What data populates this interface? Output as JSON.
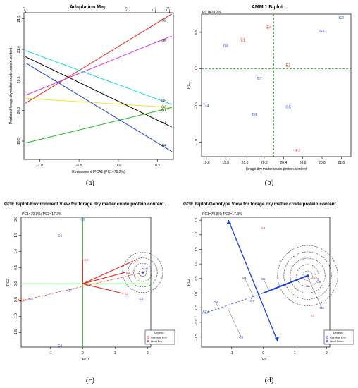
{
  "captions": [
    "(a)",
    "(b)",
    "(c)",
    "(d)"
  ],
  "colors": {
    "red": "#e8231c",
    "blue": "#1a3fd9",
    "green": "#19b419",
    "axis": "#000000"
  },
  "chart_data": [
    {
      "type": "line",
      "title": "Adaptation Map",
      "xlabel": "Environment IPCA1 (PC1=78.2%)",
      "ylabel": "Predicted forage.dry.matter.crude.protein.content",
      "xlim": [
        -1.2,
        0.7
      ],
      "ylim": [
        19.2,
        21.6
      ],
      "xticks": [
        "-1.0",
        "-0.5",
        "0.0",
        "0.5"
      ],
      "xtick_values": [
        -1.0,
        -0.5,
        0.0,
        0.5
      ],
      "yticks": [
        "19.5",
        "20.0",
        "20.5",
        "21.0",
        "21.5"
      ],
      "ytick_values": [
        19.5,
        20.0,
        20.5,
        21.0,
        21.5
      ],
      "top_labels": [
        "E3",
        "E2",
        "E1",
        "E4"
      ],
      "top_label_x": [
        -1.18,
        0.12,
        0.47,
        0.65
      ],
      "series": [
        {
          "name": "G2",
          "color": "#e8231c",
          "x": [
            -1.18,
            0.68
          ],
          "y": [
            20.12,
            21.58
          ]
        },
        {
          "name": "G6",
          "color": "#d92fd9",
          "x": [
            -1.18,
            0.68
          ],
          "y": [
            20.25,
            21.22
          ]
        },
        {
          "name": "G5",
          "color": "#1fdde0",
          "x": [
            -1.18,
            0.68
          ],
          "y": [
            20.98,
            20.1
          ]
        },
        {
          "name": "G3",
          "color": "#e8e82b",
          "x": [
            -1.18,
            0.68
          ],
          "y": [
            20.2,
            20.05
          ]
        },
        {
          "name": "G1",
          "color": "#1db81d",
          "x": [
            -1.18,
            0.68
          ],
          "y": [
            19.47,
            20.05
          ]
        },
        {
          "name": "G7",
          "color": "#000000",
          "x": [
            -1.18,
            0.68
          ],
          "y": [
            20.88,
            19.73
          ]
        },
        {
          "name": "G4",
          "color": "#1a3fd9",
          "x": [
            -1.18,
            0.68
          ],
          "y": [
            20.78,
            19.33
          ]
        }
      ],
      "line_labels": [
        "G2",
        "G6",
        "G5",
        "G3",
        "G1",
        "G7",
        "G4"
      ]
    },
    {
      "type": "scatter",
      "title": "AMMI1 Biplot",
      "subtitle": "PC1=78.2%",
      "xlabel": "forage.dry.matter.crude.protein.content",
      "ylabel": "PC1",
      "xlim": [
        19.55,
        21.1
      ],
      "ylim": [
        -1.2,
        0.75
      ],
      "xticks": [
        "19.6",
        "19.8",
        "20.0",
        "20.2",
        "20.4",
        "20.6",
        "20.8",
        "21.0"
      ],
      "xtick_values": [
        19.6,
        19.8,
        20.0,
        20.2,
        20.4,
        20.6,
        20.8,
        21.0
      ],
      "yticks": [
        "-1.0",
        "-0.5",
        "0.0",
        "0.5"
      ],
      "ytick_values": [
        -1.0,
        -0.5,
        0.0,
        0.5
      ],
      "ref_x": 20.3,
      "ref_y": 0.0,
      "points": [
        {
          "label": "G2",
          "x": 21.0,
          "y": 0.7,
          "color": "#1a3fd9"
        },
        {
          "label": "G6",
          "x": 20.8,
          "y": 0.52,
          "color": "#1a3fd9"
        },
        {
          "label": "G3",
          "x": 19.8,
          "y": 0.32,
          "color": "#1a3fd9"
        },
        {
          "label": "G7",
          "x": 20.15,
          "y": -0.13,
          "color": "#1a3fd9"
        },
        {
          "label": "G4",
          "x": 19.6,
          "y": -0.5,
          "color": "#1a3fd9"
        },
        {
          "label": "G1",
          "x": 20.1,
          "y": -0.62,
          "color": "#1a3fd9"
        },
        {
          "label": "G5",
          "x": 20.45,
          "y": -0.52,
          "color": "#1a3fd9"
        },
        {
          "label": "E4",
          "x": 20.25,
          "y": 0.57,
          "color": "#e8231c"
        },
        {
          "label": "E1",
          "x": 19.98,
          "y": 0.4,
          "color": "#e8231c"
        },
        {
          "label": "E2",
          "x": 20.45,
          "y": 0.05,
          "color": "#e8231c"
        },
        {
          "label": "E3",
          "x": 20.55,
          "y": -1.12,
          "color": "#e8231c"
        }
      ]
    },
    {
      "type": "scatter",
      "title": "GGE Biplot-Environment View for forage.dry.matter.crude.protein.content..",
      "subtitle": "PC1=79.9%; PC2=17.3%",
      "xlabel": "PC1",
      "ylabel": "PC2",
      "xlim": [
        -1.9,
        2.1
      ],
      "ylim": [
        -1.95,
        2.05
      ],
      "xticks": [
        "-1",
        "0",
        "1",
        "2"
      ],
      "xtick_values": [
        -1,
        0,
        1,
        2
      ],
      "yticks": [
        "-1.5",
        "-1.0",
        "-0.5",
        "0.0",
        "0.5",
        "1.0",
        "1.5",
        "2.0"
      ],
      "ytick_values": [
        -1.5,
        -1.0,
        -0.5,
        0.0,
        0.5,
        1.0,
        1.5,
        2.0
      ],
      "ideal": [
        1.85,
        0.35
      ],
      "ring_radii": [
        0.12,
        0.28,
        0.45,
        0.62
      ],
      "aea_end": [
        -1.8,
        -0.5
      ],
      "aea_label": "AEA",
      "genotypes": [
        {
          "label": "G1",
          "x": -0.7,
          "y": 1.5
        },
        {
          "label": "G2",
          "x": 1.8,
          "y": -0.45
        },
        {
          "label": "G3",
          "x": -0.7,
          "y": -1.9
        },
        {
          "label": "G4",
          "x": -1.6,
          "y": -0.45
        },
        {
          "label": "G5",
          "x": 0.0,
          "y": 2.0
        },
        {
          "label": "G6",
          "x": 1.95,
          "y": 0.5
        },
        {
          "label": "G7",
          "x": -0.4,
          "y": -0.2
        }
      ],
      "environments": [
        {
          "label": "E1",
          "x": 1.55,
          "y": 0.7
        },
        {
          "label": "E2",
          "x": 1.3,
          "y": 0.35
        },
        {
          "label": "E3",
          "x": 1.25,
          "y": -0.3
        },
        {
          "label": "E4",
          "x": 0.0,
          "y": 0.75
        }
      ],
      "legend": {
        "title": "Legend:",
        "items": [
          "Average Env",
          "Ideal Env"
        ]
      }
    },
    {
      "type": "scatter",
      "title": "GGE Biplot-Genotype View for forage.dry.matter.crude.protein.content..",
      "subtitle": "PC1=79.9%; PC2=17.3%",
      "xlabel": "PC1",
      "ylabel": "PC2",
      "xlim": [
        -1.95,
        2.1
      ],
      "ylim": [
        -1.85,
        2.6
      ],
      "xticks": [
        "-1",
        "0",
        "1",
        "2"
      ],
      "xtick_values": [
        -1,
        0,
        1,
        2
      ],
      "yticks": [
        "-1.5",
        "-1.0",
        "-0.5",
        "0.0",
        "0.5",
        "1.0",
        "1.5",
        "2.0",
        "2.5"
      ],
      "ytick_values": [
        -1.5,
        -1.0,
        -0.5,
        0.0,
        0.5,
        1.0,
        1.5,
        2.0,
        2.5
      ],
      "ideal": [
        1.4,
        0.6
      ],
      "ring_radii": [
        0.15,
        0.35,
        0.55,
        0.75,
        0.95
      ],
      "ath_up": [
        -1.1,
        2.5
      ],
      "ath_down": [
        0.45,
        -1.65
      ],
      "aec_end": [
        1.4,
        0.6
      ],
      "aea_end": [
        -1.75,
        -0.65
      ],
      "aea_label": "AEA",
      "genotypes": [
        {
          "label": "G1",
          "x": -0.6,
          "y": 0.55
        },
        {
          "label": "G2",
          "x": 1.85,
          "y": -0.5
        },
        {
          "label": "G3",
          "x": -0.7,
          "y": -1.5
        },
        {
          "label": "G4",
          "x": -1.5,
          "y": -0.3
        },
        {
          "label": "G5",
          "x": 0.0,
          "y": 0.5
        },
        {
          "label": "G6",
          "x": 1.75,
          "y": 0.4
        },
        {
          "label": "G7",
          "x": -0.35,
          "y": -0.25
        }
      ],
      "environments": [
        {
          "label": "E1",
          "x": 1.6,
          "y": 0.55
        },
        {
          "label": "E2",
          "x": 1.4,
          "y": 0.25
        },
        {
          "label": "E3",
          "x": 1.55,
          "y": -0.75
        },
        {
          "label": "E4",
          "x": 0.0,
          "y": 2.25
        }
      ],
      "legend": {
        "title": "Legend:",
        "items": [
          "Average Env",
          "Ideal Geno"
        ]
      }
    }
  ]
}
